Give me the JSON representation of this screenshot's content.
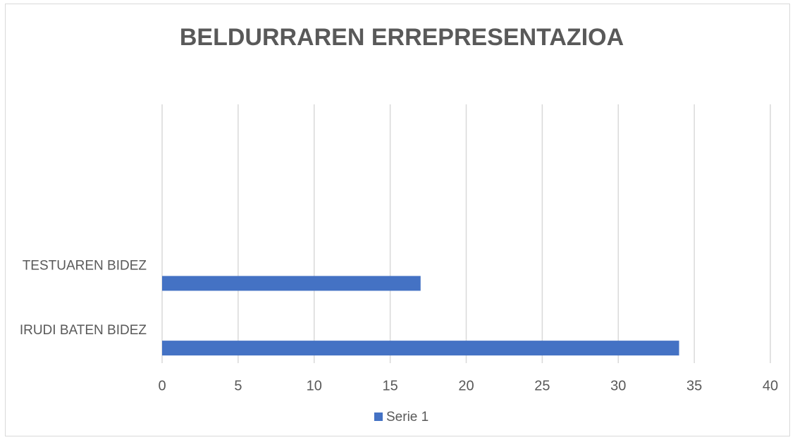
{
  "chart_data": {
    "type": "bar",
    "orientation": "horizontal",
    "title": "BELDURRAREN ERREPRESENTAZIOA",
    "categories": [
      "IRUDI BATEN BIDEZ",
      "TESTUAREN BIDEZ",
      null,
      null
    ],
    "series": [
      {
        "name": "Serie 1",
        "color": "#4472c4",
        "values": [
          34,
          17,
          null,
          null
        ]
      }
    ],
    "xlim": [
      0,
      40
    ],
    "xticks": [
      0,
      5,
      10,
      15,
      20,
      25,
      30,
      35,
      40
    ],
    "grid": true,
    "legend": "bottom"
  }
}
